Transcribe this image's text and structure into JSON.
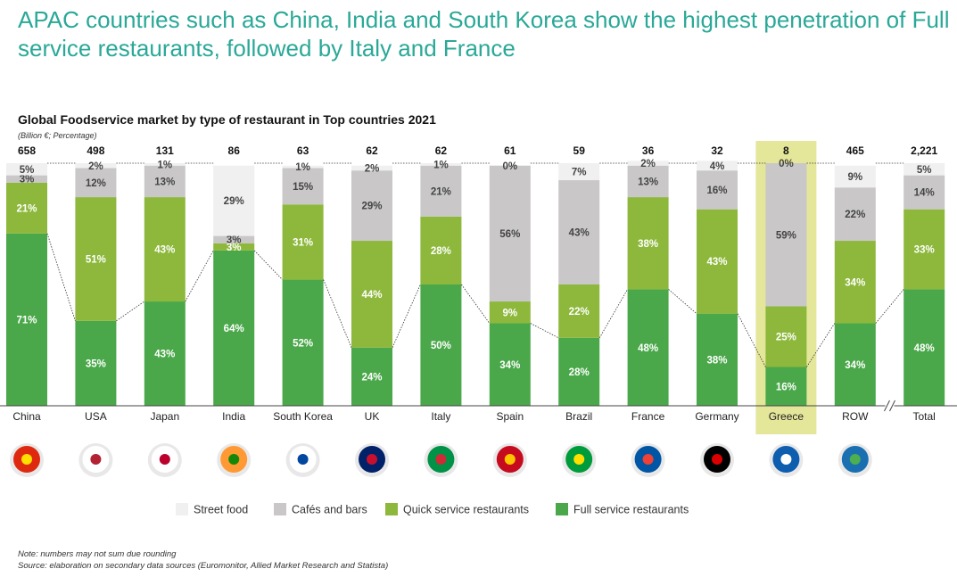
{
  "chart_data": {
    "type": "stacked_bar_100",
    "title": "APAC countries such as China, India and South Korea show the highest penetration of Full service restaurants, followed by Italy and France",
    "subtitle": "Global Foodservice market by type of restaurant in Top countries 2021",
    "units": "(Billion €; Percentage)",
    "categories": [
      "China",
      "USA",
      "Japan",
      "India",
      "South Korea",
      "UK",
      "Italy",
      "Spain",
      "Brazil",
      "France",
      "Germany",
      "Greece",
      "ROW",
      "Total"
    ],
    "highlight": "Greece",
    "ylim": [
      0,
      100
    ],
    "totals": {
      "values": [
        658,
        498,
        131,
        86,
        63,
        62,
        62,
        61,
        59,
        36,
        32,
        8,
        465,
        2221
      ],
      "value_labels": [
        "658",
        "498",
        "131",
        "86",
        "63",
        "62",
        "62",
        "61",
        "59",
        "36",
        "32",
        "8",
        "465",
        "2,221"
      ]
    },
    "series": [
      {
        "name": "Full service restaurants",
        "color": "#4aa84a",
        "values": [
          71,
          35,
          43,
          64,
          52,
          24,
          50,
          34,
          28,
          48,
          38,
          16,
          34,
          48
        ],
        "value_labels": [
          "71%",
          "35%",
          "43%",
          "64%",
          "52%",
          "24%",
          "50%",
          "34%",
          "28%",
          "48%",
          "38%",
          "16%",
          "34%",
          "48%"
        ]
      },
      {
        "name": "Quick service restaurants",
        "color": "#8db83c",
        "values": [
          21,
          51,
          43,
          3,
          31,
          44,
          28,
          9,
          22,
          38,
          43,
          25,
          34,
          33
        ],
        "value_labels": [
          "21%",
          "51%",
          "43%",
          "3%",
          "31%",
          "44%",
          "28%",
          "9%",
          "22%",
          "38%",
          "43%",
          "25%",
          "34%",
          "33%"
        ]
      },
      {
        "name": "Cafés and bars",
        "color": "#c9c7c7",
        "values": [
          3,
          12,
          13,
          3,
          15,
          29,
          21,
          56,
          43,
          13,
          16,
          59,
          22,
          14
        ],
        "value_labels": [
          "3%",
          "12%",
          "13%",
          "3%",
          "15%",
          "29%",
          "21%",
          "56%",
          "43%",
          "13%",
          "16%",
          "59%",
          "22%",
          "14%"
        ]
      },
      {
        "name": "Street food",
        "color": "#f0f0f0",
        "values": [
          5,
          2,
          1,
          29,
          1,
          2,
          1,
          0,
          7,
          2,
          4,
          0,
          9,
          5
        ],
        "value_labels": [
          "5%",
          "2%",
          "1%",
          "29%",
          "1%",
          "2%",
          "1%",
          "0%",
          "7%",
          "2%",
          "4%",
          "0%",
          "9%",
          "5%"
        ]
      }
    ],
    "notes": [
      "Note: numbers may not sum due rounding",
      "Source: elaboration on secondary data sources (Euromonitor, Allied Market Research and Statista)"
    ]
  }
}
